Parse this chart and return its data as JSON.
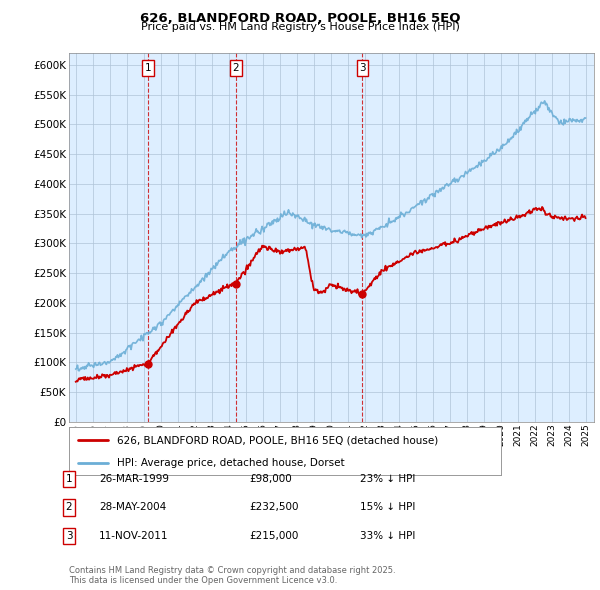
{
  "title": "626, BLANDFORD ROAD, POOLE, BH16 5EQ",
  "subtitle": "Price paid vs. HM Land Registry's House Price Index (HPI)",
  "hpi_color": "#6baed6",
  "price_color": "#cc0000",
  "background_color": "#ffffff",
  "chart_bg_color": "#ddeeff",
  "grid_color": "#b0c4d8",
  "ylim": [
    0,
    620000
  ],
  "yticks": [
    0,
    50000,
    100000,
    150000,
    200000,
    250000,
    300000,
    350000,
    400000,
    450000,
    500000,
    550000,
    600000
  ],
  "sale_points": [
    {
      "date_num": 1999.23,
      "price": 98000,
      "label": "1"
    },
    {
      "date_num": 2004.41,
      "price": 232500,
      "label": "2"
    },
    {
      "date_num": 2011.87,
      "price": 215000,
      "label": "3"
    }
  ],
  "vline_color": "#cc0000",
  "legend_label_red": "626, BLANDFORD ROAD, POOLE, BH16 5EQ (detached house)",
  "legend_label_blue": "HPI: Average price, detached house, Dorset",
  "table_rows": [
    {
      "num": "1",
      "date": "26-MAR-1999",
      "price": "£98,000",
      "pct": "23% ↓ HPI"
    },
    {
      "num": "2",
      "date": "28-MAY-2004",
      "price": "£232,500",
      "pct": "15% ↓ HPI"
    },
    {
      "num": "3",
      "date": "11-NOV-2011",
      "price": "£215,000",
      "pct": "33% ↓ HPI"
    }
  ],
  "footer": "Contains HM Land Registry data © Crown copyright and database right 2025.\nThis data is licensed under the Open Government Licence v3.0."
}
